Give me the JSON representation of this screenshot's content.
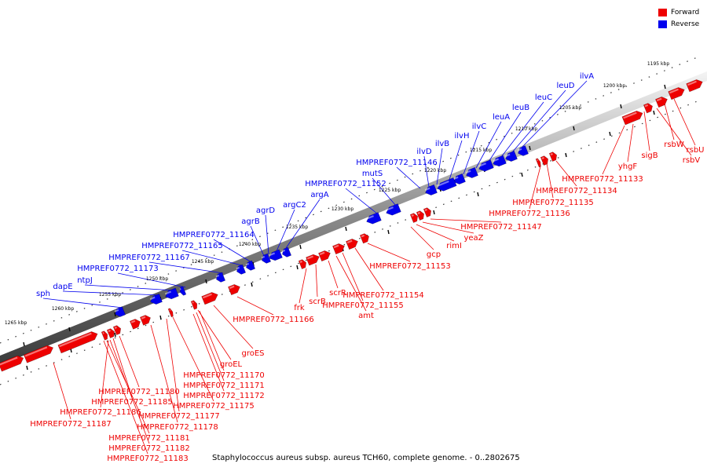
{
  "legend": {
    "forward_label": "Forward",
    "reverse_label": "Reverse",
    "forward_color": "#ee0000",
    "reverse_color": "#0000ee"
  },
  "caption": "Staphylococcus aureus subsp. aureus TCH60, complete genome. - 0..2802675",
  "ticks": [
    "1195 kbp",
    "1200 kbp",
    "1205 kbp",
    "1210 kbp",
    "1215 kbp",
    "1220 kbp",
    "1225 kbp",
    "1230 kbp",
    "1235 kbp",
    "1240 kbp",
    "1245 kbp",
    "1250 kbp",
    "1255 kbp",
    "1260 kbp",
    "1265 kbp"
  ],
  "reverse_labels": [
    "ilvA",
    "leuD",
    "leuC",
    "leuB",
    "leuA",
    "ilvC",
    "ilvH",
    "ilvB",
    "ilvD",
    "HMPREF0772_11146",
    "mutS",
    "HMPREF0772_11152",
    "argA",
    "argC2",
    "agrD",
    "agrB",
    "HMPREF0772_11164",
    "HMPREF0772_11165",
    "HMPREF0772_11167",
    "HMPREF0772_11173",
    "ntpJ",
    "dapE",
    "sph"
  ],
  "forward_labels": [
    "rsbU",
    "rsbW",
    "rsbV",
    "sigB",
    "yhgF",
    "HMPREF0772_11133",
    "HMPREF0772_11134",
    "HMPREF0772_11135",
    "HMPREF0772_11136",
    "HMPREF0772_11147",
    "yeaZ",
    "rimI",
    "gcp",
    "HMPREF0772_11153",
    "HMPREF0772_11154",
    "HMPREF0772_11155",
    "amt",
    "scrR",
    "scrB",
    "frk",
    "HMPREF0772_11166",
    "groES",
    "groEL",
    "HMPREF0772_11170",
    "HMPREF0772_11171",
    "HMPREF0772_11172",
    "HMPREF0772_11175",
    "HMPREF0772_11177",
    "HMPREF0772_11178",
    "HMPREF0772_11180",
    "HMPREF0772_11185",
    "HMPREF0772_11186",
    "HMPREF0772_11187",
    "HMPREF0772_11181",
    "HMPREF0772_11182",
    "HMPREF0772_11183"
  ]
}
